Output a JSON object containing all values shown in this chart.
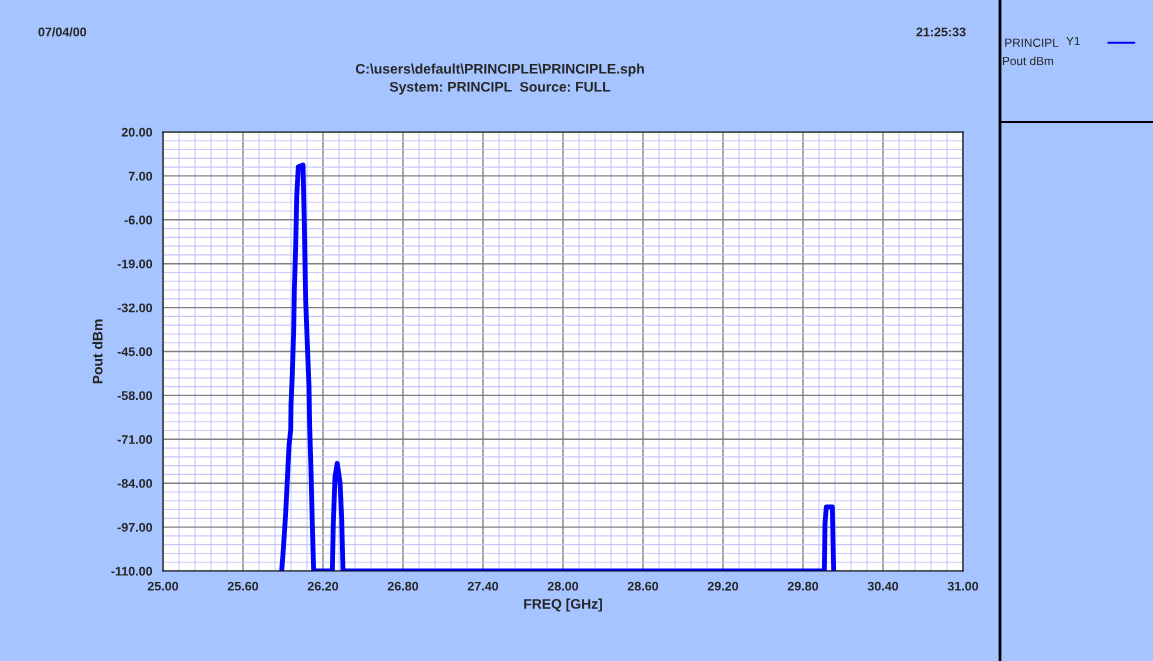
{
  "chart_data": {
    "type": "line",
    "title": "C:\\users\\default\\PRINCIPLE\\PRINCIPLE.sph",
    "subtitle": "System: PRINCIPL  Source: FULL",
    "xlabel": "FREQ [GHz]",
    "ylabel": "Pout dBm",
    "annotations": [
      "07/04/00",
      "21:25:33",
      "Y1",
      "Pout dBm"
    ],
    "series": [
      {
        "name": "PRINCIPL",
        "color": "#0000ff",
        "x": [
          25.89,
          25.9,
          25.92,
          25.935,
          25.945,
          25.958,
          25.96,
          25.97,
          25.98,
          25.985,
          25.995,
          26.003,
          26.015,
          26.05,
          26.06,
          26.07,
          26.085,
          26.095,
          26.1,
          26.11,
          26.12,
          26.13,
          26.27,
          26.277,
          26.29,
          26.307,
          26.328,
          26.34,
          26.35,
          29.96,
          29.965,
          29.975,
          30.0,
          30.02,
          30.03
        ],
        "values": [
          -110,
          -105,
          -93,
          -81,
          -73,
          -68,
          -61,
          -51.5,
          -39,
          -27,
          -14,
          1,
          9.7,
          10.2,
          -7,
          -29.7,
          -45.5,
          -55.4,
          -67.3,
          -80.1,
          -96.4,
          -110,
          -110,
          -96.4,
          -82.1,
          -78.1,
          -84,
          -94.4,
          -110,
          -110,
          -96,
          -91,
          -91,
          -91,
          -110
        ]
      }
    ],
    "xlim": [
      25,
      31
    ],
    "xticks": [
      {
        "value": 25,
        "label": "25.00"
      },
      {
        "value": 25.6,
        "label": "25.60"
      },
      {
        "value": 26.2,
        "label": "26.20"
      },
      {
        "value": 26.8,
        "label": "26.80"
      },
      {
        "value": 27.4,
        "label": "27.40"
      },
      {
        "value": 28.0,
        "label": "28.00"
      },
      {
        "value": 28.6,
        "label": "28.60"
      },
      {
        "value": 29.2,
        "label": "29.20"
      },
      {
        "value": 29.8,
        "label": "29.80"
      },
      {
        "value": 30.4,
        "label": "30.40"
      },
      {
        "value": 31,
        "label": "31.00"
      },
      {
        "value": 25.12,
        "label": null
      },
      {
        "value": 25.24,
        "label": null
      },
      {
        "value": 25.36,
        "label": null
      },
      {
        "value": 25.48,
        "label": null
      },
      {
        "value": 25.72,
        "label": null
      },
      {
        "value": 25.84,
        "label": null
      },
      {
        "value": 25.96,
        "label": null
      },
      {
        "value": 26.08,
        "label": null
      },
      {
        "value": 26.32,
        "label": null
      },
      {
        "value": 26.44,
        "label": null
      },
      {
        "value": 26.56,
        "label": null
      },
      {
        "value": 26.68,
        "label": null
      },
      {
        "value": 26.92,
        "label": null
      },
      {
        "value": 27.04,
        "label": null
      },
      {
        "value": 27.16,
        "label": null
      },
      {
        "value": 27.28,
        "label": null
      },
      {
        "value": 27.52,
        "label": null
      },
      {
        "value": 27.64,
        "label": null
      },
      {
        "value": 27.76,
        "label": null
      },
      {
        "value": 27.88,
        "label": null
      },
      {
        "value": 28.12,
        "label": null
      },
      {
        "value": 28.24,
        "label": null
      },
      {
        "value": 28.36,
        "label": null
      },
      {
        "value": 28.48,
        "label": null
      },
      {
        "value": 28.72,
        "label": null
      },
      {
        "value": 28.84,
        "label": null
      },
      {
        "value": 28.96,
        "label": null
      },
      {
        "value": 29.08,
        "label": null
      },
      {
        "value": 29.32,
        "label": null
      },
      {
        "value": 29.44,
        "label": null
      },
      {
        "value": 29.56,
        "label": null
      },
      {
        "value": 29.68,
        "label": null
      },
      {
        "value": 29.92,
        "label": null
      },
      {
        "value": 30.04,
        "label": null
      },
      {
        "value": 30.16,
        "label": null
      },
      {
        "value": 30.28,
        "label": null
      },
      {
        "value": 30.52,
        "label": null
      },
      {
        "value": 30.64,
        "label": null
      },
      {
        "value": 30.76,
        "label": null
      },
      {
        "value": 30.88,
        "label": null
      }
    ],
    "ylim": [
      -110,
      20
    ],
    "yticks": [
      {
        "value": -110,
        "label": "-110.00"
      },
      {
        "value": -97,
        "label": "-97.00"
      },
      {
        "value": -84,
        "label": "-84.00"
      },
      {
        "value": -71,
        "label": "-71.00"
      },
      {
        "value": -58,
        "label": "-58.00"
      },
      {
        "value": -45,
        "label": "-45.00"
      },
      {
        "value": -32,
        "label": "-32.00"
      },
      {
        "value": -19,
        "label": "-19.00"
      },
      {
        "value": -6,
        "label": "-6.00"
      },
      {
        "value": 7,
        "label": "7.00"
      },
      {
        "value": 20,
        "label": "20.00"
      },
      {
        "value": -107.4,
        "label": null
      },
      {
        "value": -104.8,
        "label": null
      },
      {
        "value": -102.2,
        "label": null
      },
      {
        "value": -99.6,
        "label": null
      },
      {
        "value": -94.4,
        "label": null
      },
      {
        "value": -91.8,
        "label": null
      },
      {
        "value": -89.2,
        "label": null
      },
      {
        "value": -86.6,
        "label": null
      },
      {
        "value": -81.4,
        "label": null
      },
      {
        "value": -78.8,
        "label": null
      },
      {
        "value": -76.2,
        "label": null
      },
      {
        "value": -73.6,
        "label": null
      },
      {
        "value": -68.4,
        "label": null
      },
      {
        "value": -65.8,
        "label": null
      },
      {
        "value": -63.2,
        "label": null
      },
      {
        "value": -60.6,
        "label": null
      },
      {
        "value": -55.4,
        "label": null
      },
      {
        "value": -52.8,
        "label": null
      },
      {
        "value": -50.2,
        "label": null
      },
      {
        "value": -47.6,
        "label": null
      },
      {
        "value": -42.4,
        "label": null
      },
      {
        "value": -39.8,
        "label": null
      },
      {
        "value": -37.2,
        "label": null
      },
      {
        "value": -34.6,
        "label": null
      },
      {
        "value": -29.4,
        "label": null
      },
      {
        "value": -26.8,
        "label": null
      },
      {
        "value": -24.2,
        "label": null
      },
      {
        "value": -21.6,
        "label": null
      },
      {
        "value": -16.4,
        "label": null
      },
      {
        "value": -13.8,
        "label": null
      },
      {
        "value": -11.2,
        "label": null
      },
      {
        "value": -8.6,
        "label": null
      },
      {
        "value": -3.4,
        "label": null
      },
      {
        "value": -0.8,
        "label": null
      },
      {
        "value": 1.8,
        "label": null
      },
      {
        "value": 4.4,
        "label": null
      },
      {
        "value": 9.6,
        "label": null
      },
      {
        "value": 12.2,
        "label": null
      },
      {
        "value": 14.8,
        "label": null
      },
      {
        "value": 17.4,
        "label": null
      }
    ],
    "grid": true,
    "legend": "top right"
  }
}
